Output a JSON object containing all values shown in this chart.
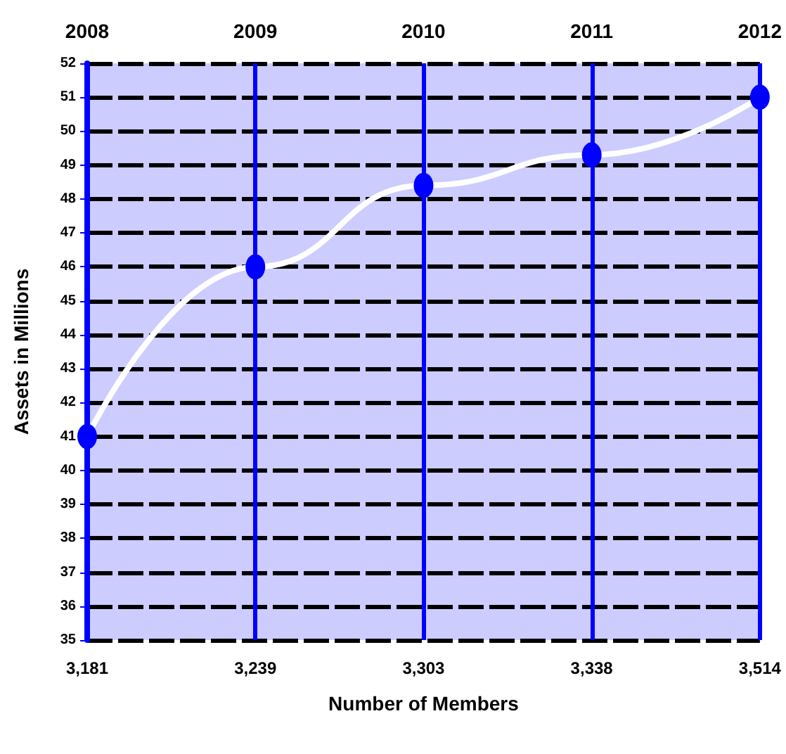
{
  "chart_data": {
    "type": "line",
    "xlabel": "Number of Members",
    "ylabel": "Assets in Millions",
    "categories": [
      "3,181",
      "3,239",
      "3,303",
      "3,338",
      "3,514"
    ],
    "series": [
      {
        "color": "#0000ff",
        "values": [
          41.0,
          46.0,
          48.4,
          49.3,
          51.0
        ]
      }
    ],
    "annotations": [
      "2008",
      "2009",
      "2010",
      "2011",
      "2012"
    ],
    "ylim": [
      35,
      52
    ],
    "yticks": [
      35,
      36,
      37,
      38,
      39,
      40,
      41,
      42,
      43,
      44,
      45,
      46,
      47,
      48,
      49,
      50,
      51,
      52
    ],
    "grid": true,
    "marker": "circle",
    "line_style": "solid"
  }
}
